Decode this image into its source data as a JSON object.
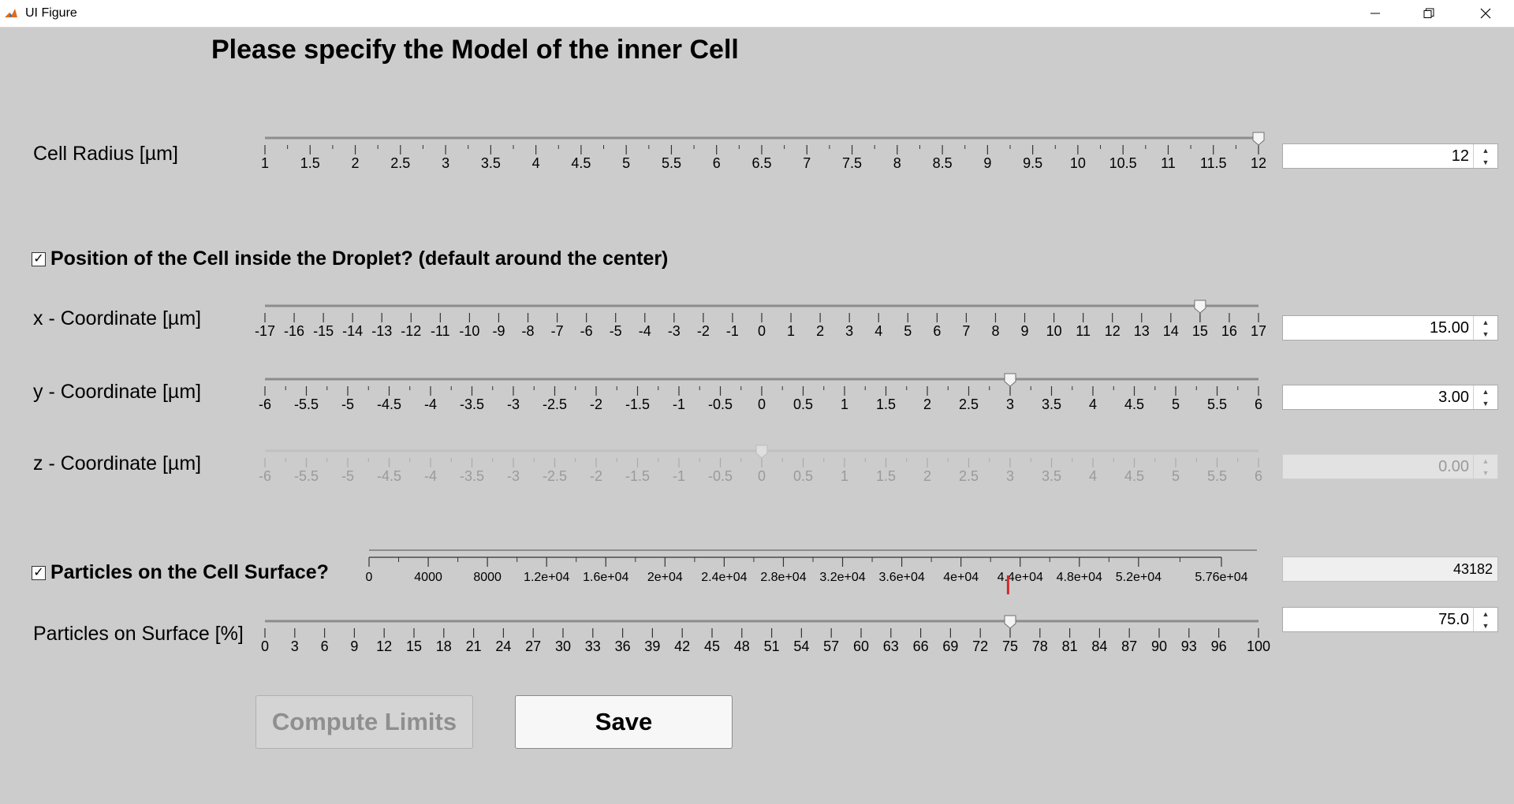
{
  "window": {
    "title": "UI Figure"
  },
  "heading": "Please specify the Model of the inner Cell",
  "colors": {
    "background": "#cccccc",
    "track": "#9a9a9a",
    "disabled_text": "#9a9a9a",
    "marker": "#d62828",
    "titlebar": "#ffffff"
  },
  "cell_radius": {
    "label": "Cell Radius [µm]",
    "min": 1,
    "max": 12,
    "value": 12,
    "major_ticks": [
      1,
      1.5,
      2,
      2.5,
      3,
      3.5,
      4,
      4.5,
      5,
      5.5,
      6,
      6.5,
      7,
      7.5,
      8,
      8.5,
      9,
      9.5,
      10,
      10.5,
      11,
      11.5,
      12
    ],
    "tick_labels": [
      "1",
      "1.5",
      "2",
      "2.5",
      "3",
      "3.5",
      "4",
      "4.5",
      "5",
      "5.5",
      "6",
      "6.5",
      "7",
      "7.5",
      "8",
      "8.5",
      "9",
      "9.5",
      "10",
      "10.5",
      "11",
      "11.5",
      "12"
    ],
    "minor_ticks": true,
    "enabled": true,
    "field_value": "12"
  },
  "position": {
    "checkbox_label": "Position of the Cell inside the Droplet? (default around the center)",
    "checked": true
  },
  "x_coordinate": {
    "label": "x - Coordinate [µm]",
    "min": -17,
    "max": 17,
    "value": 15,
    "major_ticks": [
      -17,
      -16,
      -15,
      -14,
      -13,
      -12,
      -11,
      -10,
      -9,
      -8,
      -7,
      -6,
      -5,
      -4,
      -3,
      -2,
      -1,
      0,
      1,
      2,
      3,
      4,
      5,
      6,
      7,
      8,
      9,
      10,
      11,
      12,
      13,
      14,
      15,
      16,
      17
    ],
    "tick_labels": [
      "-17",
      "-16",
      "-15",
      "-14",
      "-13",
      "-12",
      "-11",
      "-10",
      "-9",
      "-8",
      "-7",
      "-6",
      "-5",
      "-4",
      "-3",
      "-2",
      "-1",
      "0",
      "1",
      "2",
      "3",
      "4",
      "5",
      "6",
      "7",
      "8",
      "9",
      "10",
      "11",
      "12",
      "13",
      "14",
      "15",
      "16",
      "17"
    ],
    "minor_ticks": false,
    "enabled": true,
    "field_value": "15.00"
  },
  "y_coordinate": {
    "label": "y - Coordinate [µm]",
    "min": -6,
    "max": 6,
    "value": 3,
    "major_ticks": [
      -6,
      -5.5,
      -5,
      -4.5,
      -4,
      -3.5,
      -3,
      -2.5,
      -2,
      -1.5,
      -1,
      -0.5,
      0,
      0.5,
      1,
      1.5,
      2,
      2.5,
      3,
      3.5,
      4,
      4.5,
      5,
      5.5,
      6
    ],
    "tick_labels": [
      "-6",
      "-5.5",
      "-5",
      "-4.5",
      "-4",
      "-3.5",
      "-3",
      "-2.5",
      "-2",
      "-1.5",
      "-1",
      "-0.5",
      "0",
      "0.5",
      "1",
      "1.5",
      "2",
      "2.5",
      "3",
      "3.5",
      "4",
      "4.5",
      "5",
      "5.5",
      "6"
    ],
    "minor_ticks": true,
    "enabled": true,
    "field_value": "3.00"
  },
  "z_coordinate": {
    "label": "z - Coordinate [µm]",
    "min": -6,
    "max": 6,
    "value": 0,
    "major_ticks": [
      -6,
      -5.5,
      -5,
      -4.5,
      -4,
      -3.5,
      -3,
      -2.5,
      -2,
      -1.5,
      -1,
      -0.5,
      0,
      0.5,
      1,
      1.5,
      2,
      2.5,
      3,
      3.5,
      4,
      4.5,
      5,
      5.5,
      6
    ],
    "tick_labels": [
      "-6",
      "-5.5",
      "-5",
      "-4.5",
      "-4",
      "-3.5",
      "-3",
      "-2.5",
      "-2",
      "-1.5",
      "-1",
      "-0.5",
      "0",
      "0.5",
      "1",
      "1.5",
      "2",
      "2.5",
      "3",
      "3.5",
      "4",
      "4.5",
      "5",
      "5.5",
      "6"
    ],
    "minor_ticks": true,
    "enabled": false,
    "field_value": "0.00"
  },
  "particles": {
    "checkbox_label": "Particles on the Cell Surface?",
    "checked": true,
    "gauge": {
      "min": 0,
      "max": 60000,
      "marker_value": 43182,
      "major_ticks": [
        0,
        4000,
        8000,
        12000,
        16000,
        20000,
        24000,
        28000,
        32000,
        36000,
        40000,
        44000,
        48000,
        52000,
        57600
      ],
      "tick_labels": [
        "0",
        "4000",
        "8000",
        "1.2e+04",
        "1.6e+04",
        "2e+04",
        "2.4e+04",
        "2.8e+04",
        "3.2e+04",
        "3.6e+04",
        "4e+04",
        "4.4e+04",
        "4.8e+04",
        "5.2e+04",
        "5.76e+04"
      ]
    },
    "count_value": "43182"
  },
  "surface_percent": {
    "label": "Particles on Surface [%]",
    "min": 0,
    "max": 100,
    "value": 75,
    "major_ticks": [
      0,
      3,
      6,
      9,
      12,
      15,
      18,
      21,
      24,
      27,
      30,
      33,
      36,
      39,
      42,
      45,
      48,
      51,
      54,
      57,
      60,
      63,
      66,
      69,
      72,
      75,
      78,
      81,
      84,
      87,
      90,
      93,
      96,
      100
    ],
    "tick_labels": [
      "0",
      "3",
      "6",
      "9",
      "12",
      "15",
      "18",
      "21",
      "24",
      "27",
      "30",
      "33",
      "36",
      "39",
      "42",
      "45",
      "48",
      "51",
      "54",
      "57",
      "60",
      "63",
      "66",
      "69",
      "72",
      "75",
      "78",
      "81",
      "84",
      "87",
      "90",
      "93",
      "96",
      "100"
    ],
    "minor_ticks": false,
    "enabled": true,
    "field_value": "75.0"
  },
  "buttons": {
    "compute_label": "Compute Limits",
    "save_label": "Save"
  }
}
